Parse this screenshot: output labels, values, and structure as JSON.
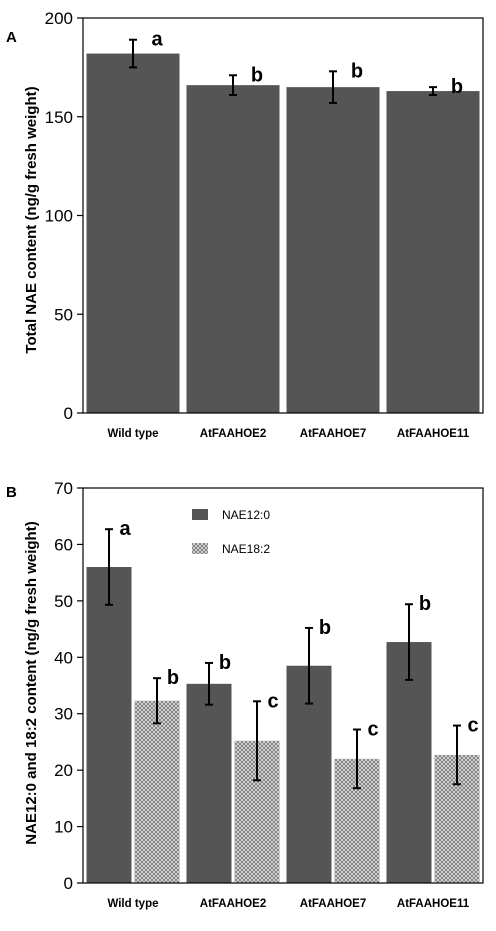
{
  "panels": [
    {
      "panel_label": "A",
      "chart_data": {
        "type": "bar",
        "categories": [
          "Wild type",
          "AtFAAHOE2",
          "AtFAAHOE7",
          "AtFAAHOE11"
        ],
        "series": [
          {
            "values": [
              182,
              166,
              165,
              163
            ],
            "errors": [
              7,
              5,
              8,
              2
            ],
            "letters": [
              "a",
              "b",
              "b",
              "b"
            ],
            "color": "#555555",
            "pattern": "solid"
          }
        ],
        "ylabel": "Total NAE content (ng/g fresh weight)",
        "xlabel": "",
        "ylim": [
          0,
          200
        ],
        "yticks": [
          0,
          50,
          100,
          150,
          200
        ],
        "legend": null,
        "grid": false
      }
    },
    {
      "panel_label": "B",
      "chart_data": {
        "type": "bar",
        "categories": [
          "Wild type",
          "AtFAAHOE2",
          "AtFAAHOE7",
          "AtFAAHOE11"
        ],
        "series": [
          {
            "name": "NAE12:0",
            "values": [
              56,
              35.3,
              38.5,
              42.7
            ],
            "errors": [
              6.7,
              3.7,
              6.7,
              6.7
            ],
            "letters": [
              "a",
              "b",
              "b",
              "b"
            ],
            "color": "#555555",
            "pattern": "solid"
          },
          {
            "name": "NAE18:2",
            "values": [
              32.3,
              25.2,
              22,
              22.7
            ],
            "errors": [
              4,
              7,
              5.2,
              5.2
            ],
            "letters": [
              "b",
              "c",
              "c",
              "c"
            ],
            "color": "#bdbdbd",
            "pattern": "crosshatch"
          }
        ],
        "ylabel": "NAE12:0 and 18:2 content (ng/g fresh weight)",
        "xlabel": "",
        "ylim": [
          0,
          70
        ],
        "yticks": [
          0,
          10,
          20,
          30,
          40,
          50,
          60,
          70
        ],
        "legend": "top-left",
        "grid": false
      }
    }
  ]
}
